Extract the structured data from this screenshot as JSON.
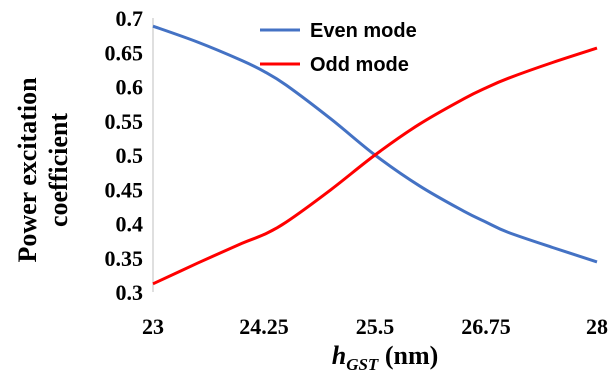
{
  "chart_data": {
    "type": "line",
    "xlabel_main": "h",
    "xlabel_sub": "GST",
    "xlabel_unit": " (nm)",
    "ylabel_line1": "Power excitation",
    "ylabel_line2": "coefficient",
    "xlim": [
      23,
      28
    ],
    "ylim": [
      0.3,
      0.7
    ],
    "x_ticks": [
      "23",
      "24.25",
      "25.5",
      "26.75",
      "28"
    ],
    "y_ticks": [
      "0.7",
      "0.65",
      "0.6",
      "0.55",
      "0.5",
      "0.45",
      "0.4",
      "0.35",
      "0.3"
    ],
    "legend_position": "top-center",
    "grid": false,
    "series": [
      {
        "name": "Even mode",
        "color": "#4472C4",
        "x": [
          23,
          23.5,
          24,
          24.25,
          24.5,
          25,
          25.5,
          26,
          26.5,
          26.75,
          27,
          27.5,
          28
        ],
        "y": [
          0.688,
          0.665,
          0.638,
          0.622,
          0.602,
          0.553,
          0.5,
          0.455,
          0.418,
          0.402,
          0.387,
          0.365,
          0.344
        ]
      },
      {
        "name": "Odd mode",
        "color": "#FF0000",
        "x": [
          23,
          23.5,
          24,
          24.25,
          24.5,
          25,
          25.5,
          26,
          26.5,
          26.75,
          27,
          27.5,
          28
        ],
        "y": [
          0.312,
          0.342,
          0.371,
          0.384,
          0.402,
          0.449,
          0.5,
          0.545,
          0.582,
          0.598,
          0.612,
          0.635,
          0.656
        ]
      }
    ]
  }
}
